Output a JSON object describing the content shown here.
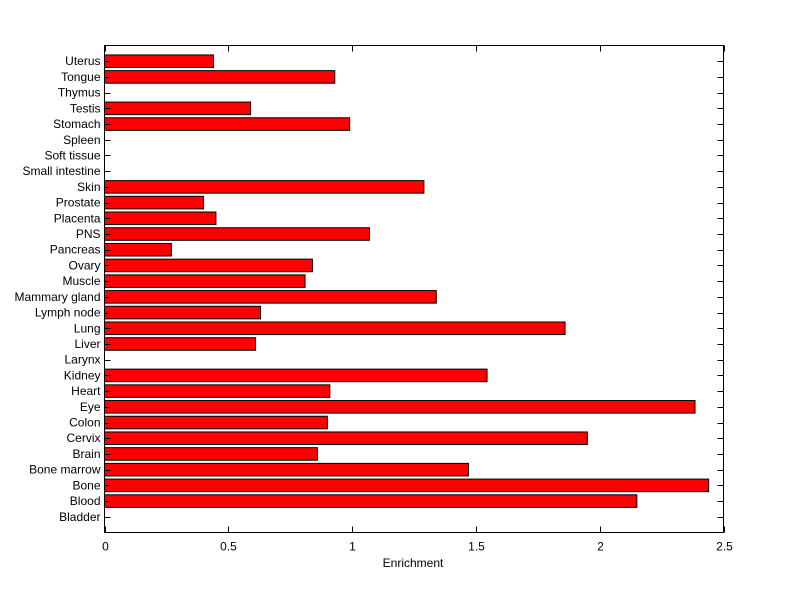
{
  "chart_data": {
    "type": "bar",
    "orientation": "horizontal",
    "title": "",
    "xlabel": "Enrichment",
    "ylabel": "",
    "xlim": [
      0,
      2.5
    ],
    "xticks": [
      0,
      0.5,
      1,
      1.5,
      2,
      2.5
    ],
    "xtick_labels": [
      "0",
      "0.5",
      "1",
      "1.5",
      "2",
      "2.5"
    ],
    "grid": false,
    "bar_color": "#ff0000",
    "categories": [
      "Bladder",
      "Blood",
      "Bone",
      "Bone marrow",
      "Brain",
      "Cervix",
      "Colon",
      "Eye",
      "Heart",
      "Kidney",
      "Larynx",
      "Liver",
      "Lung",
      "Lymph node",
      "Mammary gland",
      "Muscle",
      "Ovary",
      "Pancreas",
      "PNS",
      "Placenta",
      "Prostate",
      "Skin",
      "Small intestine",
      "Soft tissue",
      "Spleen",
      "Stomach",
      "Testis",
      "Thymus",
      "Tongue",
      "Uterus"
    ],
    "values": [
      0,
      2.15,
      2.44,
      1.47,
      0.86,
      1.95,
      0.9,
      2.385,
      0.91,
      1.545,
      0,
      0.61,
      1.86,
      0.63,
      1.34,
      0.81,
      0.84,
      0.27,
      1.07,
      0.45,
      0.4,
      1.29,
      0,
      0,
      0,
      0.99,
      0.59,
      0,
      0.93,
      0.44
    ]
  }
}
